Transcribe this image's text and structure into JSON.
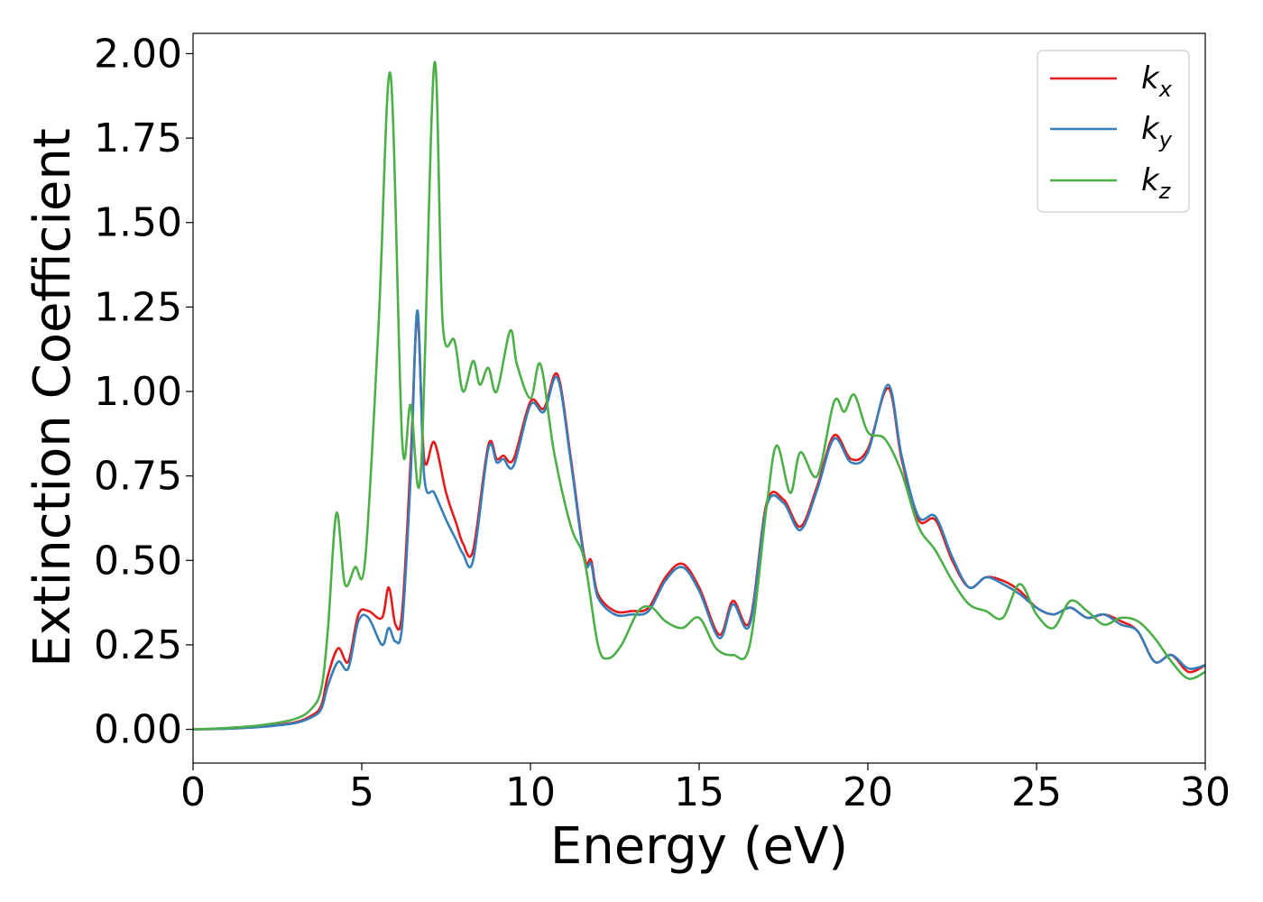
{
  "chart_data": {
    "type": "line",
    "xlabel": "Energy (eV)",
    "ylabel": "Extinction Coefficient",
    "xlim": [
      0,
      30
    ],
    "ylim": [
      -0.1,
      2.06
    ],
    "xticks": [
      0,
      5,
      10,
      15,
      20,
      25,
      30
    ],
    "xtick_labels": [
      "0",
      "5",
      "10",
      "15",
      "20",
      "25",
      "30"
    ],
    "yticks": [
      0.0,
      0.25,
      0.5,
      0.75,
      1.0,
      1.25,
      1.5,
      1.75,
      2.0
    ],
    "ytick_labels": [
      "0.00",
      "0.25",
      "0.50",
      "0.75",
      "1.00",
      "1.25",
      "1.50",
      "1.75",
      "2.00"
    ],
    "grid": false,
    "legend_position": "top-right",
    "series": [
      {
        "name": "k",
        "subscript": "x",
        "color": "#e41a1c",
        "x": [
          0,
          1,
          2,
          3,
          3.5,
          3.8,
          4.0,
          4.3,
          4.6,
          4.9,
          5.2,
          5.6,
          5.8,
          6.0,
          6.2,
          6.45,
          6.65,
          6.85,
          7.15,
          7.5,
          7.8,
          8.0,
          8.3,
          8.75,
          9.0,
          9.2,
          9.5,
          10.0,
          10.4,
          10.8,
          11.2,
          11.6,
          11.8,
          12.0,
          12.5,
          13.0,
          13.5,
          14.0,
          14.5,
          15.0,
          15.6,
          16.0,
          16.5,
          17.0,
          17.5,
          18.0,
          18.5,
          19.0,
          19.5,
          20.0,
          20.6,
          21.0,
          21.5,
          22.0,
          22.5,
          23.0,
          23.5,
          24.0,
          24.5,
          25.0,
          25.5,
          26.0,
          26.5,
          27.0,
          27.5,
          28.0,
          28.5,
          29.0,
          29.5,
          30.0
        ],
        "y": [
          0.0,
          0.002,
          0.008,
          0.02,
          0.04,
          0.07,
          0.16,
          0.24,
          0.2,
          0.34,
          0.35,
          0.33,
          0.42,
          0.31,
          0.35,
          0.8,
          1.22,
          0.8,
          0.85,
          0.7,
          0.61,
          0.55,
          0.53,
          0.84,
          0.8,
          0.81,
          0.8,
          0.97,
          0.95,
          1.05,
          0.8,
          0.51,
          0.5,
          0.4,
          0.35,
          0.35,
          0.36,
          0.45,
          0.49,
          0.42,
          0.28,
          0.38,
          0.32,
          0.67,
          0.68,
          0.6,
          0.72,
          0.87,
          0.8,
          0.83,
          1.01,
          0.8,
          0.62,
          0.62,
          0.5,
          0.42,
          0.45,
          0.44,
          0.41,
          0.36,
          0.34,
          0.36,
          0.33,
          0.34,
          0.32,
          0.29,
          0.2,
          0.22,
          0.17,
          0.19
        ]
      },
      {
        "name": "k",
        "subscript": "y",
        "color": "#377eb8",
        "x": [
          0,
          1,
          2,
          3,
          3.5,
          3.8,
          4.0,
          4.3,
          4.6,
          4.9,
          5.2,
          5.6,
          5.8,
          6.0,
          6.2,
          6.45,
          6.65,
          6.85,
          7.15,
          7.5,
          7.8,
          8.0,
          8.3,
          8.75,
          9.0,
          9.2,
          9.5,
          10.0,
          10.4,
          10.8,
          11.2,
          11.6,
          11.8,
          12.0,
          12.5,
          13.0,
          13.5,
          14.0,
          14.5,
          15.0,
          15.6,
          16.0,
          16.5,
          17.0,
          17.5,
          18.0,
          18.5,
          19.0,
          19.5,
          20.0,
          20.6,
          21.0,
          21.5,
          22.0,
          22.5,
          23.0,
          23.5,
          24.0,
          24.5,
          25.0,
          25.5,
          26.0,
          26.5,
          27.0,
          27.5,
          28.0,
          28.5,
          29.0,
          29.5,
          30.0
        ],
        "y": [
          0.0,
          0.002,
          0.007,
          0.018,
          0.035,
          0.06,
          0.13,
          0.2,
          0.18,
          0.32,
          0.33,
          0.25,
          0.3,
          0.26,
          0.31,
          0.75,
          1.24,
          0.75,
          0.7,
          0.62,
          0.56,
          0.52,
          0.5,
          0.83,
          0.79,
          0.8,
          0.78,
          0.96,
          0.94,
          1.04,
          0.79,
          0.5,
          0.49,
          0.39,
          0.34,
          0.34,
          0.35,
          0.44,
          0.48,
          0.41,
          0.27,
          0.37,
          0.31,
          0.66,
          0.67,
          0.59,
          0.71,
          0.86,
          0.79,
          0.82,
          1.02,
          0.81,
          0.63,
          0.63,
          0.51,
          0.42,
          0.45,
          0.43,
          0.4,
          0.36,
          0.34,
          0.36,
          0.33,
          0.34,
          0.31,
          0.29,
          0.2,
          0.22,
          0.18,
          0.19
        ]
      },
      {
        "name": "k",
        "subscript": "z",
        "color": "#4daf4a",
        "x": [
          0,
          1,
          2,
          3,
          3.5,
          3.8,
          4.0,
          4.25,
          4.5,
          4.8,
          5.1,
          5.5,
          5.85,
          6.2,
          6.45,
          6.75,
          7.15,
          7.4,
          7.75,
          8.0,
          8.3,
          8.5,
          8.75,
          9.0,
          9.4,
          9.6,
          10.0,
          10.3,
          10.7,
          11.2,
          11.6,
          12.0,
          12.3,
          12.7,
          13.2,
          13.6,
          14.0,
          14.5,
          15.0,
          15.5,
          16.0,
          16.5,
          17.0,
          17.3,
          17.7,
          18.0,
          18.5,
          19.0,
          19.3,
          19.6,
          20.0,
          20.5,
          21.0,
          21.5,
          22.0,
          22.5,
          23.0,
          23.5,
          24.0,
          24.5,
          25.0,
          25.5,
          26.0,
          26.5,
          27.0,
          27.5,
          28.0,
          28.5,
          29.0,
          29.5,
          30.0
        ],
        "y": [
          0.0,
          0.004,
          0.012,
          0.03,
          0.06,
          0.12,
          0.3,
          0.64,
          0.43,
          0.48,
          0.5,
          1.2,
          1.94,
          0.85,
          0.96,
          0.76,
          1.97,
          1.2,
          1.15,
          1.0,
          1.09,
          1.02,
          1.07,
          1.0,
          1.18,
          1.08,
          0.98,
          1.08,
          0.82,
          0.6,
          0.5,
          0.25,
          0.21,
          0.25,
          0.35,
          0.36,
          0.32,
          0.3,
          0.33,
          0.24,
          0.22,
          0.25,
          0.66,
          0.84,
          0.7,
          0.82,
          0.75,
          0.97,
          0.94,
          0.99,
          0.88,
          0.86,
          0.76,
          0.6,
          0.53,
          0.44,
          0.37,
          0.35,
          0.33,
          0.43,
          0.34,
          0.3,
          0.38,
          0.35,
          0.31,
          0.33,
          0.32,
          0.27,
          0.2,
          0.15,
          0.17
        ]
      }
    ]
  }
}
